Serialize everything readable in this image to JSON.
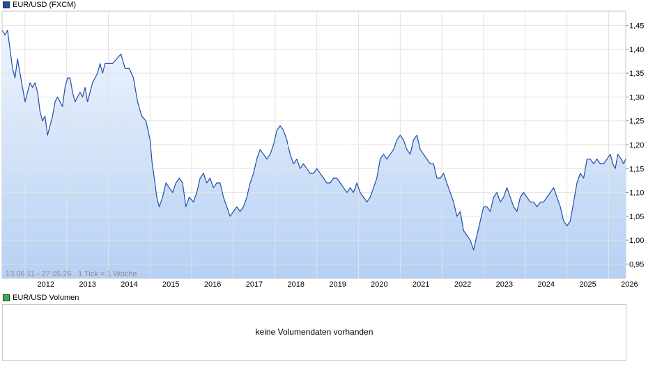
{
  "legend": {
    "price_label": "EUR/USD (FXCM)",
    "price_color": "#1f4ea8",
    "volume_label": "EUR/USD Volumen",
    "volume_color": "#3cb043"
  },
  "range_label": "13.06.11 - 27.05.26",
  "tick_label": "1 Tick = 1 Woche",
  "watermark": "ARIVA.DE",
  "volume_message": "keine Volumendaten vorhanden",
  "chart_data": {
    "type": "area",
    "title": "EUR/USD (FXCM)",
    "x_labels": [
      "2012",
      "2013",
      "2014",
      "2015",
      "2016",
      "2017",
      "2018",
      "2019",
      "2020",
      "2021",
      "2022",
      "2023",
      "2024",
      "2025",
      "2026"
    ],
    "y_ticks": [
      "1,45",
      "1,40",
      "1,35",
      "1,30",
      "1,25",
      "1,20",
      "1,15",
      "1,10",
      "1,05",
      "1,00",
      "0,95"
    ],
    "ylim": [
      0.92,
      1.48
    ],
    "xlim": [
      2011.45,
      2026.41
    ],
    "grid": true,
    "line_color": "#1f4ea8",
    "fill_top_color": "#eef4fd",
    "fill_bottom_color": "#b6d0f4",
    "series": [
      {
        "values": [
          [
            2011.45,
            1.44
          ],
          [
            2011.52,
            1.43
          ],
          [
            2011.58,
            1.44
          ],
          [
            2011.64,
            1.4
          ],
          [
            2011.7,
            1.36
          ],
          [
            2011.76,
            1.34
          ],
          [
            2011.82,
            1.38
          ],
          [
            2011.88,
            1.35
          ],
          [
            2011.94,
            1.32
          ],
          [
            2012.0,
            1.29
          ],
          [
            2012.06,
            1.31
          ],
          [
            2012.12,
            1.33
          ],
          [
            2012.18,
            1.32
          ],
          [
            2012.24,
            1.33
          ],
          [
            2012.3,
            1.31
          ],
          [
            2012.36,
            1.27
          ],
          [
            2012.42,
            1.25
          ],
          [
            2012.48,
            1.26
          ],
          [
            2012.54,
            1.22
          ],
          [
            2012.6,
            1.24
          ],
          [
            2012.66,
            1.26
          ],
          [
            2012.72,
            1.29
          ],
          [
            2012.78,
            1.3
          ],
          [
            2012.84,
            1.29
          ],
          [
            2012.9,
            1.28
          ],
          [
            2012.96,
            1.32
          ],
          [
            2013.02,
            1.34
          ],
          [
            2013.08,
            1.34
          ],
          [
            2013.14,
            1.31
          ],
          [
            2013.2,
            1.29
          ],
          [
            2013.26,
            1.3
          ],
          [
            2013.32,
            1.31
          ],
          [
            2013.38,
            1.3
          ],
          [
            2013.44,
            1.32
          ],
          [
            2013.5,
            1.29
          ],
          [
            2013.56,
            1.31
          ],
          [
            2013.62,
            1.33
          ],
          [
            2013.68,
            1.34
          ],
          [
            2013.74,
            1.35
          ],
          [
            2013.8,
            1.37
          ],
          [
            2013.86,
            1.35
          ],
          [
            2013.92,
            1.37
          ],
          [
            2014.0,
            1.37
          ],
          [
            2014.1,
            1.37
          ],
          [
            2014.2,
            1.38
          ],
          [
            2014.3,
            1.39
          ],
          [
            2014.4,
            1.36
          ],
          [
            2014.5,
            1.36
          ],
          [
            2014.6,
            1.34
          ],
          [
            2014.7,
            1.29
          ],
          [
            2014.8,
            1.26
          ],
          [
            2014.9,
            1.25
          ],
          [
            2015.0,
            1.21
          ],
          [
            2015.05,
            1.16
          ],
          [
            2015.1,
            1.13
          ],
          [
            2015.16,
            1.09
          ],
          [
            2015.22,
            1.07
          ],
          [
            2015.3,
            1.09
          ],
          [
            2015.38,
            1.12
          ],
          [
            2015.46,
            1.11
          ],
          [
            2015.54,
            1.1
          ],
          [
            2015.62,
            1.12
          ],
          [
            2015.7,
            1.13
          ],
          [
            2015.78,
            1.12
          ],
          [
            2015.86,
            1.07
          ],
          [
            2015.94,
            1.09
          ],
          [
            2016.04,
            1.08
          ],
          [
            2016.12,
            1.1
          ],
          [
            2016.2,
            1.13
          ],
          [
            2016.28,
            1.14
          ],
          [
            2016.36,
            1.12
          ],
          [
            2016.44,
            1.13
          ],
          [
            2016.52,
            1.11
          ],
          [
            2016.6,
            1.12
          ],
          [
            2016.68,
            1.12
          ],
          [
            2016.76,
            1.09
          ],
          [
            2016.84,
            1.07
          ],
          [
            2016.92,
            1.05
          ],
          [
            2017.0,
            1.06
          ],
          [
            2017.08,
            1.07
          ],
          [
            2017.16,
            1.06
          ],
          [
            2017.24,
            1.07
          ],
          [
            2017.32,
            1.09
          ],
          [
            2017.4,
            1.12
          ],
          [
            2017.48,
            1.14
          ],
          [
            2017.56,
            1.17
          ],
          [
            2017.64,
            1.19
          ],
          [
            2017.72,
            1.18
          ],
          [
            2017.8,
            1.17
          ],
          [
            2017.88,
            1.18
          ],
          [
            2017.96,
            1.2
          ],
          [
            2018.04,
            1.23
          ],
          [
            2018.12,
            1.24
          ],
          [
            2018.2,
            1.23
          ],
          [
            2018.28,
            1.21
          ],
          [
            2018.36,
            1.18
          ],
          [
            2018.44,
            1.16
          ],
          [
            2018.52,
            1.17
          ],
          [
            2018.6,
            1.15
          ],
          [
            2018.68,
            1.16
          ],
          [
            2018.76,
            1.15
          ],
          [
            2018.84,
            1.14
          ],
          [
            2018.92,
            1.14
          ],
          [
            2019.0,
            1.15
          ],
          [
            2019.08,
            1.14
          ],
          [
            2019.16,
            1.13
          ],
          [
            2019.24,
            1.12
          ],
          [
            2019.32,
            1.12
          ],
          [
            2019.4,
            1.13
          ],
          [
            2019.48,
            1.13
          ],
          [
            2019.56,
            1.12
          ],
          [
            2019.64,
            1.11
          ],
          [
            2019.72,
            1.1
          ],
          [
            2019.8,
            1.11
          ],
          [
            2019.88,
            1.1
          ],
          [
            2019.96,
            1.12
          ],
          [
            2020.04,
            1.1
          ],
          [
            2020.12,
            1.09
          ],
          [
            2020.2,
            1.08
          ],
          [
            2020.28,
            1.09
          ],
          [
            2020.36,
            1.11
          ],
          [
            2020.44,
            1.13
          ],
          [
            2020.52,
            1.17
          ],
          [
            2020.6,
            1.18
          ],
          [
            2020.68,
            1.17
          ],
          [
            2020.76,
            1.18
          ],
          [
            2020.84,
            1.19
          ],
          [
            2020.92,
            1.21
          ],
          [
            2021.0,
            1.22
          ],
          [
            2021.08,
            1.21
          ],
          [
            2021.16,
            1.19
          ],
          [
            2021.24,
            1.18
          ],
          [
            2021.32,
            1.21
          ],
          [
            2021.4,
            1.22
          ],
          [
            2021.48,
            1.19
          ],
          [
            2021.56,
            1.18
          ],
          [
            2021.64,
            1.17
          ],
          [
            2021.72,
            1.16
          ],
          [
            2021.8,
            1.16
          ],
          [
            2021.88,
            1.13
          ],
          [
            2021.96,
            1.13
          ],
          [
            2022.04,
            1.14
          ],
          [
            2022.12,
            1.12
          ],
          [
            2022.2,
            1.1
          ],
          [
            2022.28,
            1.08
          ],
          [
            2022.36,
            1.05
          ],
          [
            2022.44,
            1.06
          ],
          [
            2022.52,
            1.02
          ],
          [
            2022.6,
            1.01
          ],
          [
            2022.68,
            1.0
          ],
          [
            2022.76,
            0.98
          ],
          [
            2022.84,
            1.01
          ],
          [
            2022.92,
            1.04
          ],
          [
            2023.0,
            1.07
          ],
          [
            2023.08,
            1.07
          ],
          [
            2023.16,
            1.06
          ],
          [
            2023.24,
            1.09
          ],
          [
            2023.32,
            1.1
          ],
          [
            2023.4,
            1.08
          ],
          [
            2023.48,
            1.09
          ],
          [
            2023.56,
            1.11
          ],
          [
            2023.64,
            1.09
          ],
          [
            2023.72,
            1.07
          ],
          [
            2023.8,
            1.06
          ],
          [
            2023.88,
            1.09
          ],
          [
            2023.96,
            1.1
          ],
          [
            2024.04,
            1.09
          ],
          [
            2024.12,
            1.08
          ],
          [
            2024.2,
            1.08
          ],
          [
            2024.28,
            1.07
          ],
          [
            2024.36,
            1.08
          ],
          [
            2024.44,
            1.08
          ],
          [
            2024.52,
            1.09
          ],
          [
            2024.6,
            1.1
          ],
          [
            2024.68,
            1.11
          ],
          [
            2024.76,
            1.09
          ],
          [
            2024.84,
            1.07
          ],
          [
            2024.92,
            1.04
          ],
          [
            2025.0,
            1.03
          ],
          [
            2025.08,
            1.04
          ],
          [
            2025.16,
            1.08
          ],
          [
            2025.24,
            1.12
          ],
          [
            2025.32,
            1.14
          ],
          [
            2025.4,
            1.13
          ],
          [
            2025.48,
            1.17
          ],
          [
            2025.56,
            1.17
          ],
          [
            2025.64,
            1.16
          ],
          [
            2025.72,
            1.17
          ],
          [
            2025.8,
            1.16
          ],
          [
            2025.88,
            1.16
          ],
          [
            2025.96,
            1.17
          ],
          [
            2026.04,
            1.18
          ],
          [
            2026.1,
            1.16
          ],
          [
            2026.16,
            1.15
          ],
          [
            2026.22,
            1.18
          ],
          [
            2026.3,
            1.17
          ],
          [
            2026.36,
            1.16
          ],
          [
            2026.41,
            1.17
          ]
        ]
      }
    ]
  }
}
